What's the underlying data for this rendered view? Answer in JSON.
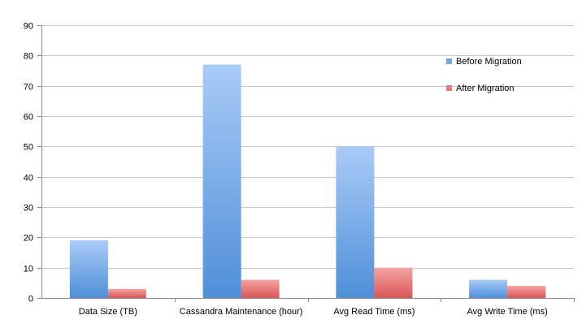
{
  "chart_data": {
    "type": "bar",
    "categories": [
      "Data Size  (TB)",
      "Cassandra Maintenance (hour)",
      "Avg Read Time (ms)",
      "Avg Write Time (ms)"
    ],
    "series": [
      {
        "name": "Before Migration",
        "values": [
          19,
          77,
          50,
          6
        ],
        "color": "#6fa8e6"
      },
      {
        "name": "After Migration",
        "values": [
          3,
          6,
          10,
          4
        ],
        "color": "#e8787a"
      }
    ],
    "ylim": [
      0,
      90
    ],
    "yticks": [
      0,
      10,
      20,
      30,
      40,
      50,
      60,
      70,
      80,
      90
    ],
    "grid": true,
    "legend_position": "top-right",
    "title": "",
    "xlabel": "",
    "ylabel": ""
  }
}
